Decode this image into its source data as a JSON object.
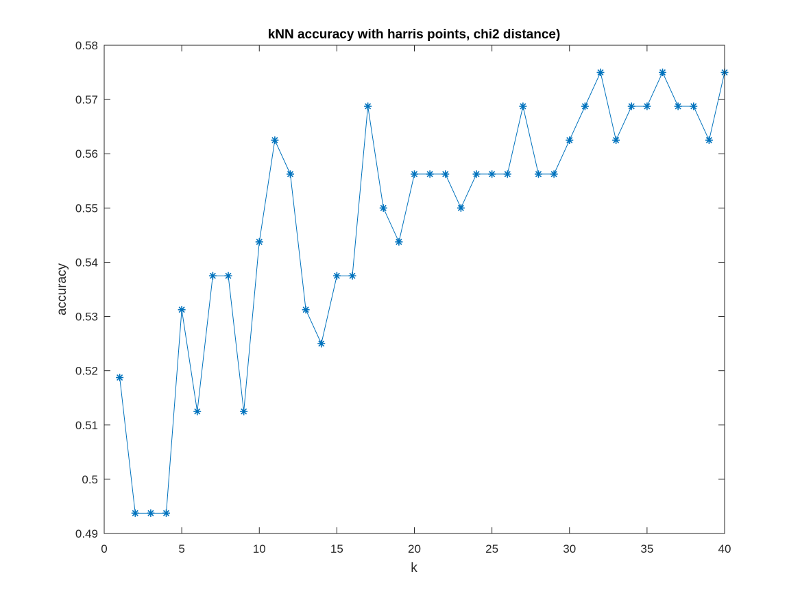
{
  "chart_data": {
    "type": "line",
    "title": "kNN accuracy with harris points, chi2 distance)",
    "xlabel": "k",
    "ylabel": "accuracy",
    "xlim": [
      0,
      40
    ],
    "ylim": [
      0.49,
      0.58
    ],
    "xticks": [
      0,
      5,
      10,
      15,
      20,
      25,
      30,
      35,
      40
    ],
    "xtick_labels": [
      "0",
      "5",
      "10",
      "15",
      "20",
      "25",
      "30",
      "35",
      "40"
    ],
    "yticks": [
      0.49,
      0.5,
      0.51,
      0.52,
      0.53,
      0.54,
      0.55,
      0.56,
      0.57,
      0.58
    ],
    "ytick_labels": [
      "0.49",
      "0.5",
      "0.51",
      "0.52",
      "0.53",
      "0.54",
      "0.55",
      "0.56",
      "0.57",
      "0.58"
    ],
    "grid": false,
    "marker": "asterisk",
    "color": "#0072BD",
    "series": [
      {
        "x": [
          1,
          2,
          3,
          4,
          5,
          6,
          7,
          8,
          9,
          10,
          11,
          12,
          13,
          14,
          15,
          16,
          17,
          18,
          19,
          20,
          21,
          22,
          23,
          24,
          25,
          26,
          27,
          28,
          29,
          30,
          31,
          32,
          33,
          34,
          35,
          36,
          37,
          38,
          39,
          40
        ],
        "values": [
          0.51875,
          0.49375,
          0.49375,
          0.49375,
          0.53125,
          0.5125,
          0.5375,
          0.5375,
          0.5125,
          0.54375,
          0.5625,
          0.55625,
          0.53125,
          0.525,
          0.5375,
          0.5375,
          0.56875,
          0.55,
          0.54375,
          0.55625,
          0.55625,
          0.55625,
          0.55,
          0.55625,
          0.55625,
          0.55625,
          0.56875,
          0.55625,
          0.55625,
          0.5625,
          0.56875,
          0.575,
          0.5625,
          0.56875,
          0.56875,
          0.575,
          0.56875,
          0.56875,
          0.5625,
          0.575
        ]
      }
    ]
  }
}
